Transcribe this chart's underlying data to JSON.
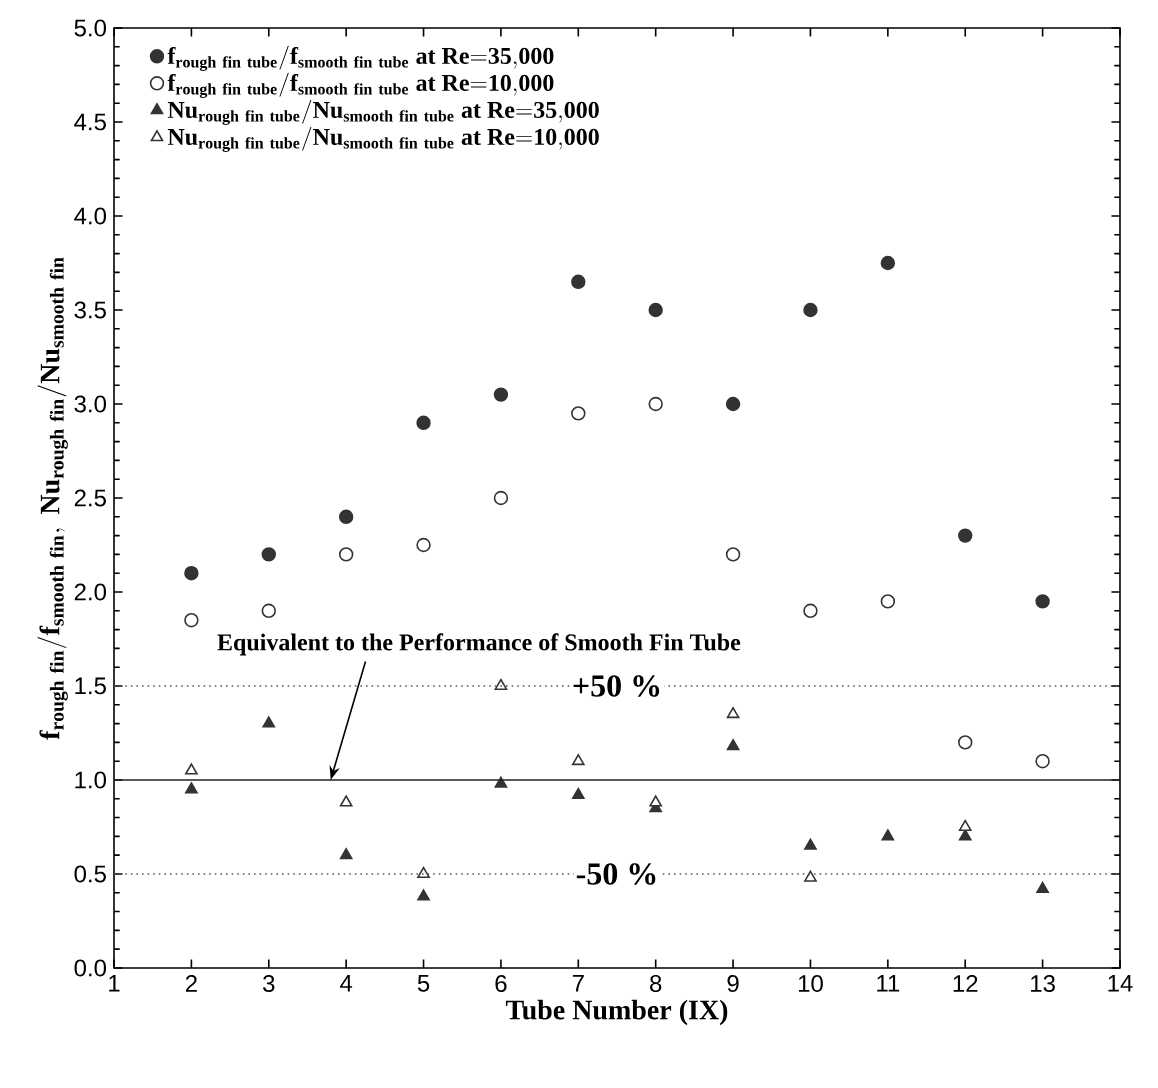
{
  "chart_data": {
    "type": "scatter",
    "xlabel": "Tube Number (IX)",
    "ylabel": "\\mathbf{f_{rough\\ fin}/f_{smooth\\ fin},\\ Nu_{rough\\ fin}/Nu_{smooth\\ fin}}",
    "x": [
      2,
      3,
      4,
      5,
      6,
      7,
      8,
      9,
      10,
      11,
      12,
      13
    ],
    "series": [
      {
        "name": "\\mathbf{f_{rough\\ fin\\ tube}/f_{smooth\\ fin\\ tube}\\ at\\ Re{=}35{,}000}",
        "color": "#333333",
        "marker": "circle",
        "values": [
          2.1,
          2.2,
          2.4,
          2.9,
          3.05,
          3.65,
          3.5,
          3.0,
          3.5,
          3.75,
          2.3,
          1.95
        ]
      },
      {
        "name": "\\mathbf{f_{rough\\ fin\\ tube}/f_{smooth\\ fin\\ tube}\\ at\\ Re{=}10{,}000}",
        "color": "#333333",
        "marker": "circle open",
        "values": [
          1.85,
          1.9,
          2.2,
          2.25,
          2.5,
          2.95,
          3.0,
          2.2,
          1.9,
          1.95,
          1.2,
          1.1
        ]
      },
      {
        "name": "\\mathbf{Nu_{rough\\ fin\\ tube}/Nu_{smooth\\ fin\\ tube}\\ at\\ Re{=}35{,}000}",
        "color": "#333333",
        "marker": "triangle",
        "values": [
          0.95,
          1.3,
          0.6,
          0.38,
          0.98,
          0.92,
          0.85,
          1.18,
          0.65,
          0.7,
          0.7,
          0.42
        ]
      },
      {
        "name": "\\mathbf{Nu_{rough\\ fin\\ tube}/Nu_{smooth\\ fin\\ tube}\\ at\\ Re{=}10{,}000}",
        "color": "#333333",
        "marker": "triangle open",
        "values": [
          1.05,
          null,
          0.88,
          0.5,
          1.5,
          1.1,
          0.88,
          1.35,
          0.48,
          null,
          0.75,
          null
        ]
      }
    ],
    "xlim": [
      1,
      14
    ],
    "ylim": [
      0,
      5
    ],
    "xticks": [
      1,
      2,
      3,
      4,
      5,
      6,
      7,
      8,
      9,
      10,
      11,
      12,
      13,
      14
    ],
    "yticks": [
      {
        "value": 0,
        "label": "0.0"
      },
      {
        "value": 0.5,
        "label": "0.5"
      },
      {
        "value": 1,
        "label": "1.0"
      },
      {
        "value": 1.5,
        "label": "1.5"
      },
      {
        "value": 2,
        "label": "2.0"
      },
      {
        "value": 2.5,
        "label": "2.5"
      },
      {
        "value": 3,
        "label": "3.0"
      },
      {
        "value": 3.5,
        "label": "3.5"
      },
      {
        "value": 4,
        "label": "4.0"
      },
      {
        "value": 4.5,
        "label": "4.5"
      },
      {
        "value": 5,
        "label": "5.0"
      }
    ],
    "ref_lines": [
      {
        "axis": "y",
        "value": 1,
        "line_style": "solid",
        "color": "#222222"
      },
      {
        "axis": "y",
        "value": 1.5,
        "line_style": "dotted",
        "color": "#555555"
      },
      {
        "axis": "y",
        "value": 0.5,
        "line_style": "dotted",
        "color": "#555555"
      }
    ],
    "annotations": [
      {
        "text": "Equivalent to the Performance of Smooth Fin Tube",
        "x": 3.8,
        "y": 1.0
      },
      "+50 %",
      "-50 %"
    ],
    "legend": "top left"
  }
}
